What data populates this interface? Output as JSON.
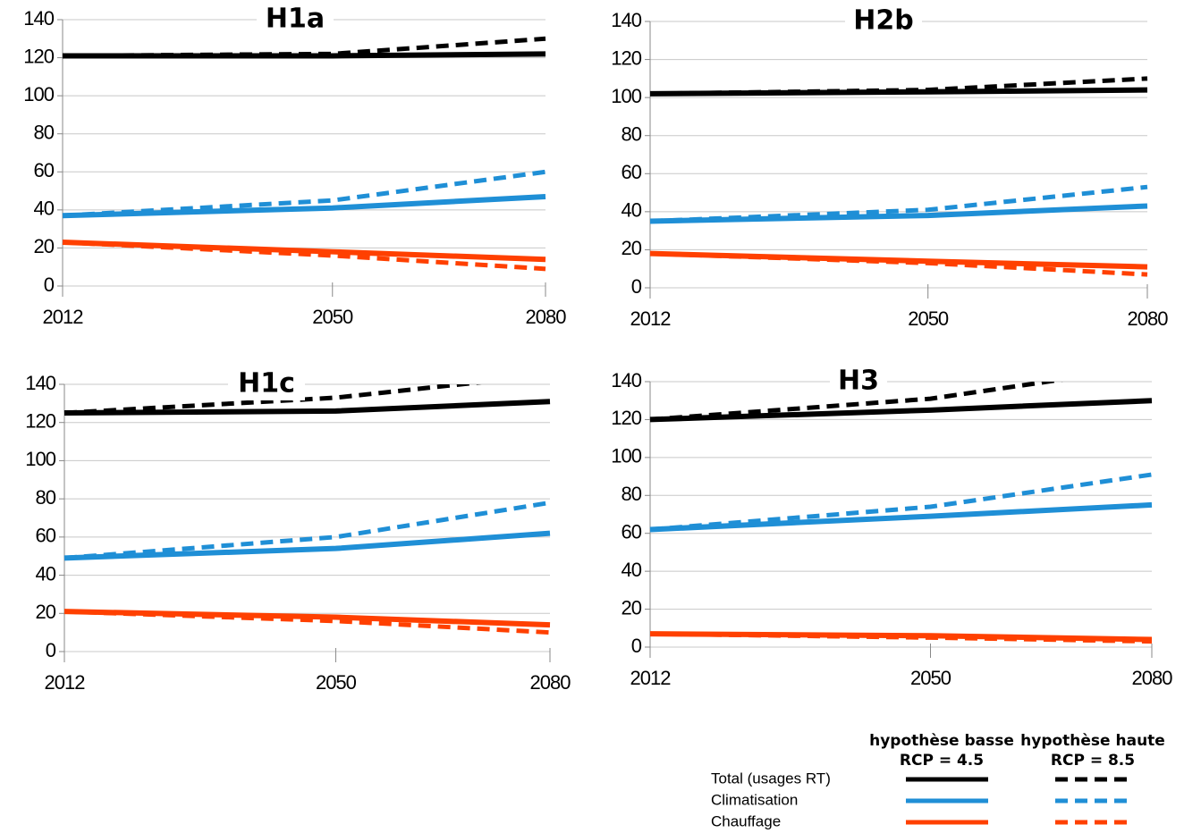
{
  "chart_data": [
    {
      "type": "line",
      "title": "H1a",
      "x": [
        2012,
        2050,
        2080
      ],
      "xlim": [
        2012,
        2080
      ],
      "xticks": [
        2012,
        2050,
        2080
      ],
      "ylim": [
        0,
        140
      ],
      "yticks": [
        0,
        20,
        40,
        60,
        80,
        100,
        120,
        140
      ],
      "grid": true,
      "series": [
        {
          "color": "#000000",
          "dashed": false,
          "values": [
            121,
            121,
            122
          ]
        },
        {
          "color": "#000000",
          "dashed": true,
          "values": [
            121,
            122,
            130
          ]
        },
        {
          "color": "#1f8fd6",
          "dashed": false,
          "values": [
            37,
            41,
            47
          ]
        },
        {
          "color": "#1f8fd6",
          "dashed": true,
          "values": [
            37,
            45,
            60
          ]
        },
        {
          "color": "#ff4000",
          "dashed": false,
          "values": [
            23,
            18,
            14
          ]
        },
        {
          "color": "#ff4000",
          "dashed": true,
          "values": [
            23,
            16,
            9
          ]
        }
      ]
    },
    {
      "type": "line",
      "title": "H2b",
      "x": [
        2012,
        2050,
        2080
      ],
      "xlim": [
        2012,
        2080
      ],
      "xticks": [
        2012,
        2050,
        2080
      ],
      "ylim": [
        0,
        140
      ],
      "yticks": [
        0,
        20,
        40,
        60,
        80,
        100,
        120,
        140
      ],
      "grid": true,
      "series": [
        {
          "color": "#000000",
          "dashed": false,
          "values": [
            102,
            103,
            104
          ]
        },
        {
          "color": "#000000",
          "dashed": true,
          "values": [
            102,
            104,
            110
          ]
        },
        {
          "color": "#1f8fd6",
          "dashed": false,
          "values": [
            35,
            38,
            43
          ]
        },
        {
          "color": "#1f8fd6",
          "dashed": true,
          "values": [
            35,
            41,
            53
          ]
        },
        {
          "color": "#ff4000",
          "dashed": false,
          "values": [
            18,
            14,
            11
          ]
        },
        {
          "color": "#ff4000",
          "dashed": true,
          "values": [
            18,
            13,
            7
          ]
        }
      ]
    },
    {
      "type": "line",
      "title": "H1c",
      "x": [
        2012,
        2050,
        2080
      ],
      "xlim": [
        2012,
        2080
      ],
      "xticks": [
        2012,
        2050,
        2080
      ],
      "ylim": [
        0,
        140
      ],
      "yticks": [
        0,
        20,
        40,
        60,
        80,
        100,
        120,
        140
      ],
      "grid": true,
      "series": [
        {
          "color": "#000000",
          "dashed": false,
          "values": [
            125,
            126,
            131
          ]
        },
        {
          "color": "#000000",
          "dashed": true,
          "values": [
            125,
            133,
            145
          ]
        },
        {
          "color": "#1f8fd6",
          "dashed": false,
          "values": [
            49,
            54,
            62
          ]
        },
        {
          "color": "#1f8fd6",
          "dashed": true,
          "values": [
            49,
            60,
            78
          ]
        },
        {
          "color": "#ff4000",
          "dashed": false,
          "values": [
            21,
            18,
            14
          ]
        },
        {
          "color": "#ff4000",
          "dashed": true,
          "values": [
            21,
            16,
            10
          ]
        }
      ]
    },
    {
      "type": "line",
      "title": "H3",
      "x": [
        2012,
        2050,
        2080
      ],
      "xlim": [
        2012,
        2080
      ],
      "xticks": [
        2012,
        2050,
        2080
      ],
      "ylim": [
        0,
        140
      ],
      "yticks": [
        0,
        20,
        40,
        60,
        80,
        100,
        120,
        140
      ],
      "grid": true,
      "series": [
        {
          "color": "#000000",
          "dashed": false,
          "values": [
            120,
            125,
            130
          ]
        },
        {
          "color": "#000000",
          "dashed": true,
          "values": [
            120,
            131,
            148
          ]
        },
        {
          "color": "#1f8fd6",
          "dashed": false,
          "values": [
            62,
            69,
            75
          ]
        },
        {
          "color": "#1f8fd6",
          "dashed": true,
          "values": [
            62,
            74,
            91
          ]
        },
        {
          "color": "#ff4000",
          "dashed": false,
          "values": [
            7,
            6,
            4
          ]
        },
        {
          "color": "#ff4000",
          "dashed": true,
          "values": [
            7,
            5,
            3
          ]
        }
      ]
    }
  ],
  "legend": {
    "columns": [
      {
        "lines": [
          "hypothèse basse",
          "RCP = 4.5"
        ],
        "dashed": false
      },
      {
        "lines": [
          "hypothèse haute",
          "RCP = 8.5"
        ],
        "dashed": true
      }
    ],
    "rows": [
      {
        "label": "Total (usages RT)",
        "color": "#000000"
      },
      {
        "label": "Climatisation",
        "color": "#1f8fd6"
      },
      {
        "label": "Chauffage",
        "color": "#ff4000"
      }
    ]
  }
}
